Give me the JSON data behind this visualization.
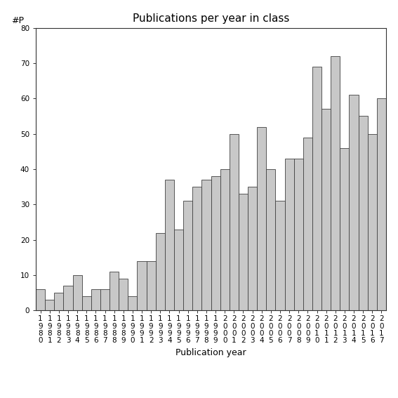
{
  "years": [
    1980,
    1981,
    1982,
    1983,
    1984,
    1985,
    1986,
    1987,
    1988,
    1989,
    1990,
    1991,
    1992,
    1993,
    1994,
    1995,
    1996,
    1997,
    1998,
    1999,
    2000,
    2001,
    2002,
    2003,
    2004,
    2005,
    2006,
    2007,
    2008,
    2009,
    2010,
    2011,
    2012,
    2013,
    2014,
    2015,
    2016,
    2017
  ],
  "values": [
    6,
    3,
    5,
    7,
    10,
    4,
    6,
    6,
    11,
    9,
    4,
    14,
    14,
    22,
    37,
    23,
    31,
    35,
    37,
    38,
    40,
    50,
    33,
    35,
    52,
    40,
    31,
    43,
    43,
    49,
    69,
    57,
    72,
    46,
    61,
    55,
    50,
    60
  ],
  "bar_color": "#c8c8c8",
  "bar_edgecolor": "#404040",
  "title": "Publications per year in class",
  "xlabel": "Publication year",
  "ylabel": "#P",
  "ylim": [
    0,
    80
  ],
  "yticks": [
    0,
    10,
    20,
    30,
    40,
    50,
    60,
    70,
    80
  ],
  "title_fontsize": 11,
  "label_fontsize": 9,
  "tick_fontsize": 7.5,
  "bg_color": "#ffffff"
}
